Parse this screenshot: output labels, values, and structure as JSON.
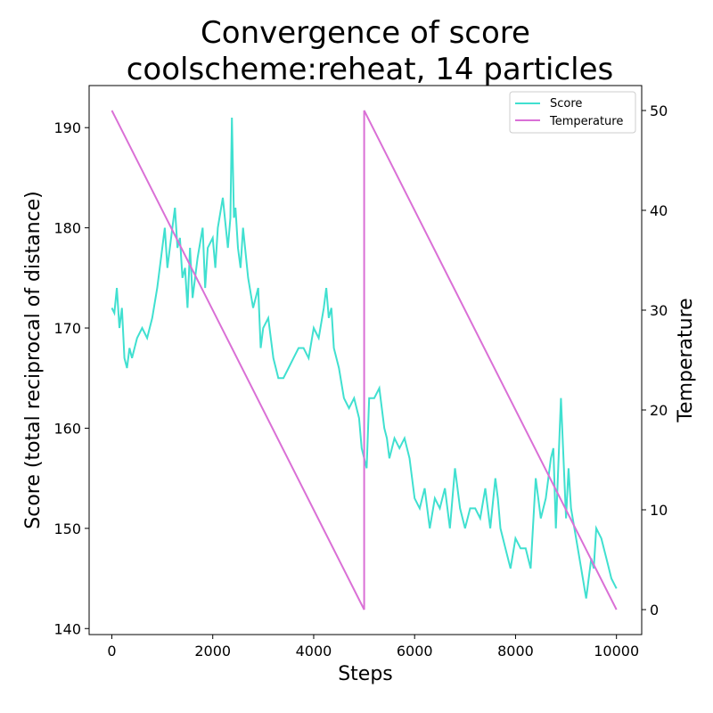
{
  "chart_data": {
    "type": "line",
    "title": "Convergence of score",
    "subtitle": "coolscheme:reheat, 14 particles",
    "xlabel": "Steps",
    "ylabel": "Score (total reciprocal of distance)",
    "y2label": "Temperature",
    "xlim": [
      -450,
      10500
    ],
    "ylim": [
      139.4,
      194.2
    ],
    "y2lim": [
      -2.5,
      52.5
    ],
    "x_ticks": [
      0,
      2000,
      4000,
      6000,
      8000,
      10000
    ],
    "y_ticks": [
      140,
      150,
      160,
      170,
      180,
      190
    ],
    "y2_ticks": [
      0,
      10,
      20,
      30,
      40,
      50
    ],
    "grid": false,
    "legend_position": "top-right",
    "colors": {
      "score": "#40e0d0",
      "temperature": "#da70d6"
    },
    "series": [
      {
        "name": "Score",
        "axis": "left",
        "x": [
          0,
          50,
          100,
          150,
          200,
          250,
          300,
          350,
          400,
          500,
          600,
          700,
          800,
          900,
          1000,
          1050,
          1100,
          1200,
          1250,
          1300,
          1350,
          1400,
          1450,
          1500,
          1550,
          1600,
          1700,
          1800,
          1850,
          1900,
          2000,
          2050,
          2100,
          2200,
          2300,
          2350,
          2380,
          2420,
          2450,
          2500,
          2550,
          2600,
          2700,
          2800,
          2900,
          2950,
          3000,
          3100,
          3200,
          3300,
          3400,
          3500,
          3600,
          3700,
          3800,
          3900,
          4000,
          4100,
          4200,
          4250,
          4300,
          4350,
          4400,
          4500,
          4600,
          4700,
          4800,
          4900,
          4950,
          5000,
          5050,
          5100,
          5200,
          5300,
          5400,
          5450,
          5500,
          5600,
          5700,
          5800,
          5900,
          6000,
          6100,
          6200,
          6300,
          6400,
          6500,
          6600,
          6700,
          6800,
          6900,
          7000,
          7100,
          7200,
          7300,
          7400,
          7500,
          7600,
          7650,
          7700,
          7800,
          7900,
          8000,
          8100,
          8200,
          8300,
          8400,
          8500,
          8600,
          8700,
          8750,
          8800,
          8900,
          9000,
          9050,
          9100,
          9200,
          9300,
          9400,
          9500,
          9550,
          9600,
          9700,
          9800,
          9900,
          10000
        ],
        "y": [
          172,
          171.5,
          174,
          170,
          172,
          167,
          166,
          168,
          167,
          169,
          170,
          169,
          171,
          174,
          178,
          180,
          176,
          180,
          182,
          178,
          179,
          175,
          176,
          172,
          178,
          173,
          177,
          180,
          174,
          178,
          179,
          176,
          180,
          183,
          178,
          181,
          191,
          181,
          182,
          178,
          176,
          180,
          175,
          172,
          174,
          168,
          170,
          171,
          167,
          165,
          165,
          166,
          167,
          168,
          168,
          167,
          170,
          169,
          172,
          174,
          171,
          172,
          168,
          166,
          163,
          162,
          163,
          161,
          158,
          157,
          156,
          163,
          163,
          164,
          160,
          159,
          157,
          159,
          158,
          159,
          157,
          153,
          152,
          154,
          150,
          153,
          152,
          154,
          150,
          156,
          152,
          150,
          152,
          152,
          151,
          154,
          150,
          155,
          153,
          150,
          148,
          146,
          149,
          148,
          148,
          146,
          155,
          151,
          153,
          157,
          158,
          150,
          163,
          151,
          156,
          152,
          149,
          146,
          143,
          147,
          146,
          150,
          149,
          147,
          145,
          144
        ]
      },
      {
        "name": "Temperature",
        "axis": "right",
        "x": [
          0,
          5000,
          5000,
          10000
        ],
        "y": [
          50,
          0,
          50,
          0
        ]
      }
    ]
  }
}
